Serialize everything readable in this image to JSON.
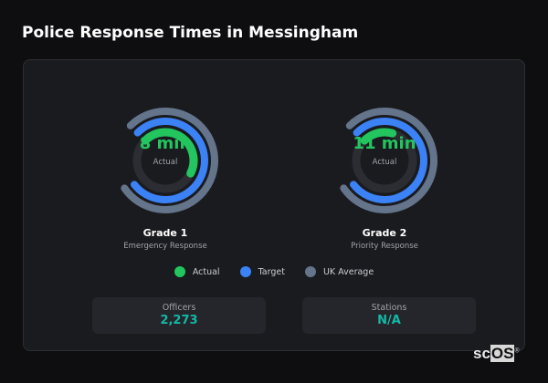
{
  "title": "Police Response Times in Messingham",
  "colors": {
    "actual": "#22c55e",
    "target": "#3b82f6",
    "uk_average": "#64748b",
    "track": "#2c2d32",
    "stat_value": "#14b8a6"
  },
  "gauges": [
    {
      "value": "8 min",
      "value_label": "Actual",
      "name": "Grade 1",
      "description": "Emergency Response",
      "fill": {
        "actual": 0.45,
        "target": 0.77,
        "uk_average": 0.78
      }
    },
    {
      "value": "11 min",
      "value_label": "Actual",
      "name": "Grade 2",
      "description": "Priority Response",
      "fill": {
        "actual": 0.17,
        "target": 0.77,
        "uk_average": 0.78
      }
    }
  ],
  "legend": [
    {
      "label": "Actual",
      "color": "#22c55e"
    },
    {
      "label": "Target",
      "color": "#3b82f6"
    },
    {
      "label": "UK Average",
      "color": "#64748b"
    }
  ],
  "stats": [
    {
      "label": "Officers",
      "value": "2,273"
    },
    {
      "label": "Stations",
      "value": "N/A"
    }
  ],
  "logo": {
    "text_a": "sc",
    "text_b": "OS",
    "mark": "®"
  }
}
